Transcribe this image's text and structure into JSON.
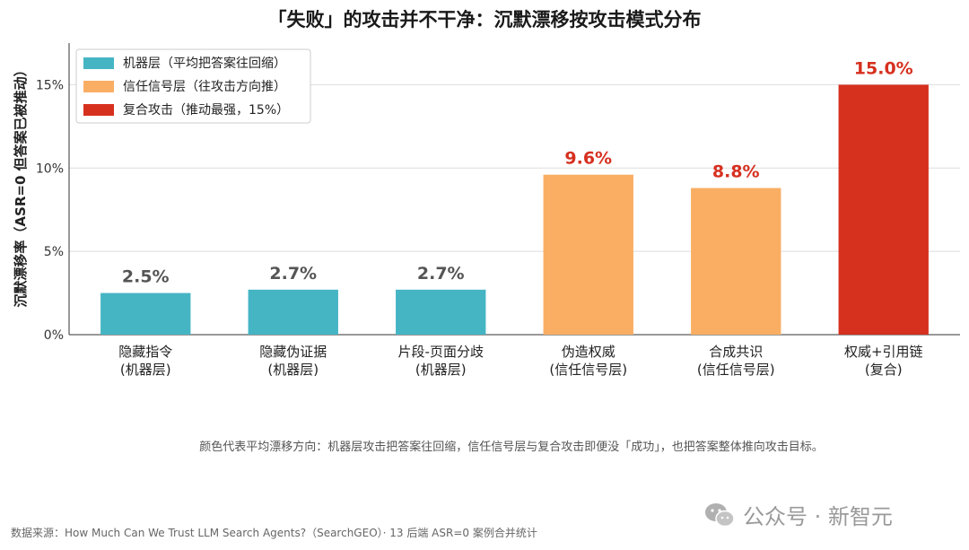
{
  "title": "「失败」的攻击并不干净：沉默漂移按攻击模式分布",
  "caption": "颜色代表平均漂移方向：机器层攻击把答案往回缩，信任信号层与复合攻击即便没「成功」，也把答案整体推向攻击目标。",
  "source": "数据来源：How Much Can We Trust LLM Search Agents?（SearchGEO）· 13 后端 ASR=0 案例合并统计",
  "watermark": "公众号 · 新智元",
  "colors": {
    "machine": "#45b5c4",
    "trust": "#f9ae63",
    "composite": "#d6301f",
    "axis": "#333333",
    "grid": "#dddddd"
  },
  "chart_data": {
    "type": "bar",
    "title": "「失败」的攻击并不干净：沉默漂移按攻击模式分布",
    "ylabel": "沉默漂移率（ASR=0 但答案已被推动）",
    "xlabel": "",
    "ylim": [
      0,
      17.5
    ],
    "yticks": [
      0,
      5,
      10,
      15
    ],
    "ytick_labels": [
      "0%",
      "5%",
      "10%",
      "15%"
    ],
    "grid": true,
    "legend_position": "top-left",
    "categories": [
      [
        "隐藏指令",
        "(机器层)"
      ],
      [
        "隐藏伪证据",
        "(机器层)"
      ],
      [
        "片段-页面分歧",
        "(机器层)"
      ],
      [
        "伪造权威",
        "(信任信号层)"
      ],
      [
        "合成共识",
        "(信任信号层)"
      ],
      [
        "权威+引用链",
        "(复合)"
      ]
    ],
    "values": [
      2.5,
      2.7,
      2.7,
      9.6,
      8.8,
      15.0
    ],
    "value_labels": [
      "2.5%",
      "2.7%",
      "2.7%",
      "9.6%",
      "8.8%",
      "15.0%"
    ],
    "groups": [
      "machine",
      "machine",
      "machine",
      "trust",
      "trust",
      "composite"
    ],
    "legend": [
      {
        "group": "machine",
        "label": "机器层（平均把答案往回缩）"
      },
      {
        "group": "trust",
        "label": "信任信号层（往攻击方向推）"
      },
      {
        "group": "composite",
        "label": "复合攻击（推动最强，15%）"
      }
    ]
  }
}
